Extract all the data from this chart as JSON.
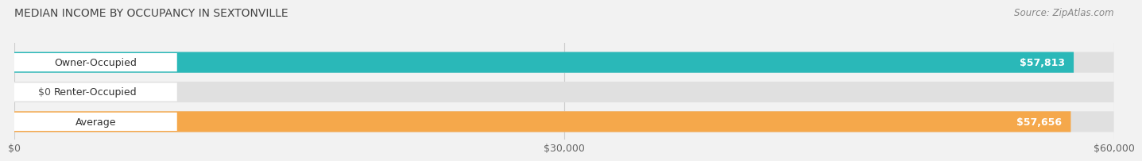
{
  "title": "MEDIAN INCOME BY OCCUPANCY IN SEXTONVILLE",
  "source": "Source: ZipAtlas.com",
  "categories": [
    "Owner-Occupied",
    "Renter-Occupied",
    "Average"
  ],
  "values": [
    57813,
    0,
    57656
  ],
  "bar_colors": [
    "#2ab8b8",
    "#c9a8d4",
    "#f5a84b"
  ],
  "bar_labels": [
    "$57,813",
    "$0",
    "$57,656"
  ],
  "xlim": [
    0,
    60000
  ],
  "xtick_labels": [
    "$0",
    "$30,000",
    "$60,000"
  ],
  "xtick_values": [
    0,
    30000,
    60000
  ],
  "background_color": "#f2f2f2",
  "bar_bg_color": "#e0e0e0",
  "title_fontsize": 10,
  "source_fontsize": 8.5,
  "label_fontsize": 9,
  "value_fontsize": 9,
  "tick_fontsize": 9
}
